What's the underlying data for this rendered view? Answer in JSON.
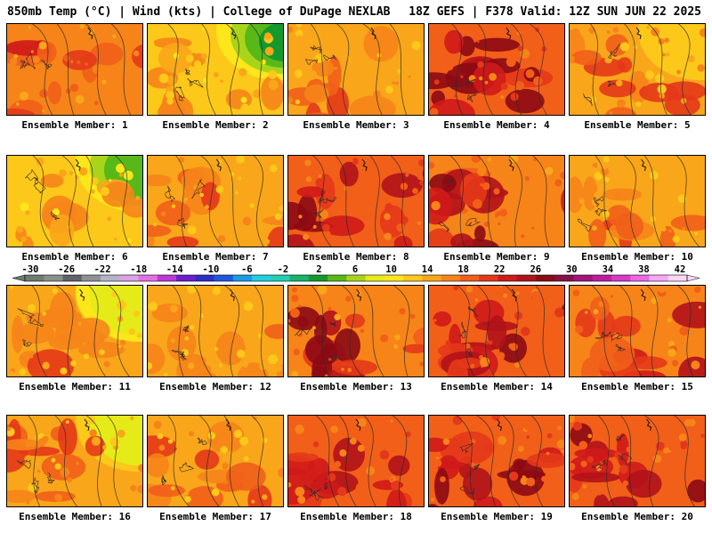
{
  "header": {
    "left": "850mb Temp (°C) | Wind (kts) | College of DuPage NEXLAB",
    "right": "18Z GEFS | F378 Valid: 12Z SUN JUN 22 2025"
  },
  "panels": [
    {
      "label": "Ensemble Member: 1",
      "base": 20,
      "hot": 2,
      "cool": 0
    },
    {
      "label": "Ensemble Member: 2",
      "base": 17,
      "hot": 1,
      "cool": 4
    },
    {
      "label": "Ensemble Member: 3",
      "base": 18,
      "hot": 2,
      "cool": 0
    },
    {
      "label": "Ensemble Member: 4",
      "base": 23,
      "hot": 4,
      "cool": 0
    },
    {
      "label": "Ensemble Member: 5",
      "base": 19,
      "hot": 2,
      "cool": 1
    },
    {
      "label": "Ensemble Member: 6",
      "base": 17,
      "hot": 1,
      "cool": 3
    },
    {
      "label": "Ensemble Member: 7",
      "base": 18,
      "hot": 2,
      "cool": 0
    },
    {
      "label": "Ensemble Member: 8",
      "base": 22,
      "hot": 3,
      "cool": 0
    },
    {
      "label": "Ensemble Member: 9",
      "base": 21,
      "hot": 4,
      "cool": 0
    },
    {
      "label": "Ensemble Member: 10",
      "base": 18,
      "hot": 2,
      "cool": 0
    },
    {
      "label": "Ensemble Member: 11",
      "base": 18,
      "hot": 2,
      "cool": 2
    },
    {
      "label": "Ensemble Member: 12",
      "base": 18,
      "hot": 1,
      "cool": 0
    },
    {
      "label": "Ensemble Member: 13",
      "base": 21,
      "hot": 4,
      "cool": 0
    },
    {
      "label": "Ensemble Member: 14",
      "base": 23,
      "hot": 4,
      "cool": 0
    },
    {
      "label": "Ensemble Member: 15",
      "base": 21,
      "hot": 3,
      "cool": 0
    },
    {
      "label": "Ensemble Member: 16",
      "base": 19,
      "hot": 2,
      "cool": 2
    },
    {
      "label": "Ensemble Member: 17",
      "base": 18,
      "hot": 2,
      "cool": 0
    },
    {
      "label": "Ensemble Member: 18",
      "base": 22,
      "hot": 3,
      "cool": 0
    },
    {
      "label": "Ensemble Member: 19",
      "base": 22,
      "hot": 4,
      "cool": 0
    },
    {
      "label": "Ensemble Member: 20",
      "base": 22,
      "hot": 3,
      "cool": 0
    }
  ],
  "colorbar": {
    "labels": [
      "-30",
      "-26",
      "-22",
      "-18",
      "-14",
      "-10",
      "-6",
      "-2",
      "2",
      "6",
      "10",
      "14",
      "18",
      "22",
      "26",
      "30",
      "34",
      "38",
      "42"
    ],
    "colors": [
      "#6e7b70",
      "#8a918b",
      "#5f6266",
      "#8f9197",
      "#b4b4c8",
      "#d9a3e6",
      "#e46fe3",
      "#c038d8",
      "#6a1fcf",
      "#2d2dc6",
      "#1f58e0",
      "#1c9ae6",
      "#20d0e0",
      "#1fd0b0",
      "#16b56a",
      "#149a2c",
      "#58b818",
      "#a9d41a",
      "#e6ea18",
      "#fde61a",
      "#fcc81a",
      "#f9a61a",
      "#f68419",
      "#f15f19",
      "#e4381a",
      "#cf1a1a",
      "#b1121a",
      "#8c0a14",
      "#861048",
      "#a3147a",
      "#c01c9e",
      "#d83ac8",
      "#ee66e3",
      "#f7a8f4",
      "#fbd6f8"
    ]
  }
}
